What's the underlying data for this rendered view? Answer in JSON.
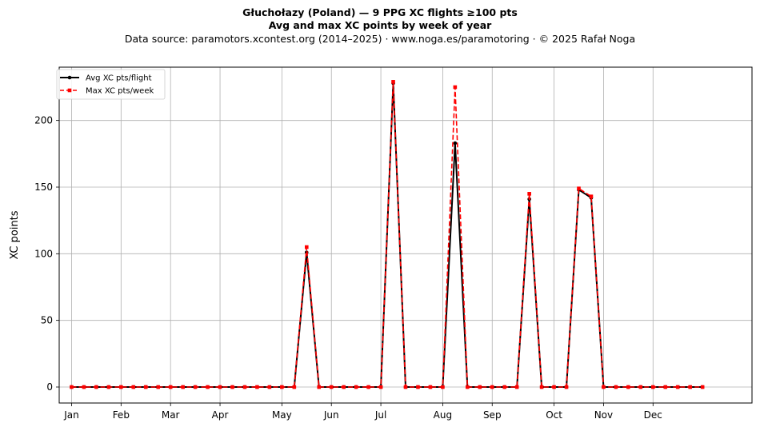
{
  "title": {
    "line1": "Głuchołazy (Poland)  —  9 PPG XC flights ≥100 pts",
    "line2": "Avg and max XC points by week of year",
    "line3": "Data source: paramotors.xcontest.org (2014–2025)  ·  www.noga.es/paramotoring  ·  © 2025 Rafał Noga"
  },
  "chart_data": {
    "type": "line",
    "title": "Głuchołazy (Poland)  —  9 PPG XC flights ≥100 pts",
    "subtitle": "Avg and max XC points by week of year",
    "xlabel": "",
    "ylabel": "XC points",
    "x_unit": "week of year",
    "xlim": [
      -1,
      55
    ],
    "ylim": [
      -12,
      240
    ],
    "yticks": [
      0,
      50,
      100,
      150,
      200
    ],
    "xticks": [
      {
        "week": 0,
        "label": "Jan"
      },
      {
        "week": 4,
        "label": "Feb"
      },
      {
        "week": 8,
        "label": "Mar"
      },
      {
        "week": 12,
        "label": "Apr"
      },
      {
        "week": 17,
        "label": "May"
      },
      {
        "week": 21,
        "label": "Jun"
      },
      {
        "week": 25,
        "label": "Jul"
      },
      {
        "week": 30,
        "label": "Aug"
      },
      {
        "week": 34,
        "label": "Sep"
      },
      {
        "week": 39,
        "label": "Oct"
      },
      {
        "week": 43,
        "label": "Nov"
      },
      {
        "week": 47,
        "label": "Dec"
      }
    ],
    "grid": true,
    "legend_position": "top-left",
    "x": [
      0,
      1,
      2,
      3,
      4,
      5,
      6,
      7,
      8,
      9,
      10,
      11,
      12,
      13,
      14,
      15,
      16,
      17,
      18,
      19,
      20,
      21,
      22,
      23,
      24,
      25,
      26,
      27,
      28,
      29,
      30,
      31,
      32,
      33,
      34,
      35,
      36,
      37,
      38,
      39,
      40,
      41,
      42,
      43,
      44,
      45,
      46,
      47,
      48,
      49,
      50,
      51
    ],
    "series": [
      {
        "name": "Avg XC pts/flight",
        "color": "#000000",
        "style": "solid",
        "marker": "circle",
        "values": [
          0,
          0,
          0,
          0,
          0,
          0,
          0,
          0,
          0,
          0,
          0,
          0,
          0,
          0,
          0,
          0,
          0,
          0,
          0,
          101,
          0,
          0,
          0,
          0,
          0,
          0,
          228,
          0,
          0,
          0,
          0,
          183,
          0,
          0,
          0,
          0,
          0,
          141,
          0,
          0,
          0,
          148,
          142,
          0,
          0,
          0,
          0,
          0,
          0,
          0,
          0,
          0
        ]
      },
      {
        "name": "Max XC pts/week",
        "color": "#ff0000",
        "style": "dashed",
        "marker": "square",
        "values": [
          0,
          0,
          0,
          0,
          0,
          0,
          0,
          0,
          0,
          0,
          0,
          0,
          0,
          0,
          0,
          0,
          0,
          0,
          0,
          105,
          0,
          0,
          0,
          0,
          0,
          0,
          229,
          0,
          0,
          0,
          0,
          225,
          0,
          0,
          0,
          0,
          0,
          145,
          0,
          0,
          0,
          149,
          143,
          0,
          0,
          0,
          0,
          0,
          0,
          0,
          0,
          0
        ]
      }
    ]
  }
}
